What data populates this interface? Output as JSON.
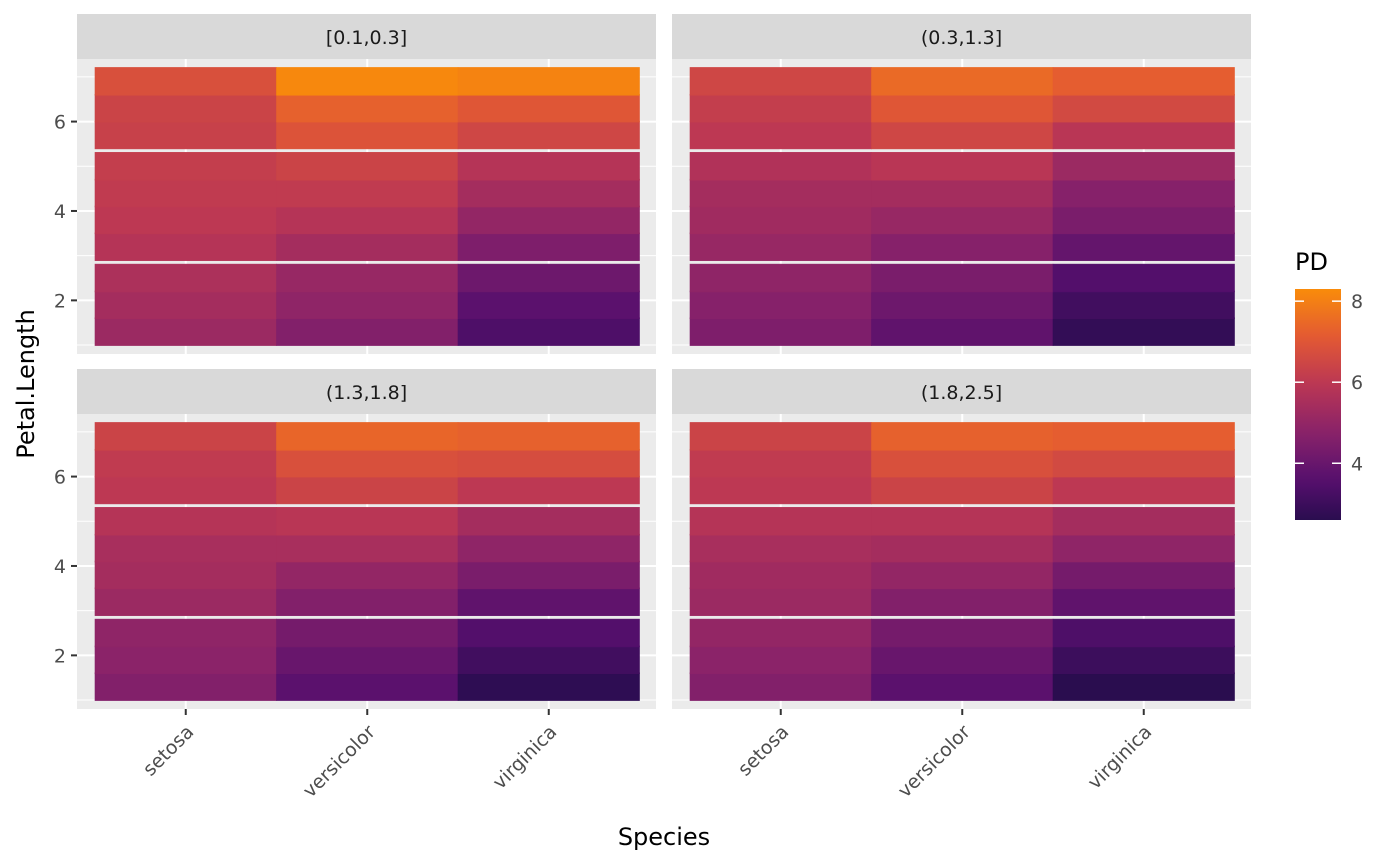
{
  "chart_data": {
    "type": "heatmap",
    "xlabel": "Species",
    "ylabel": "Petal.Length",
    "categories": [
      "setosa",
      "versicolor",
      "virginica"
    ],
    "y_ticks": [
      2,
      4,
      6
    ],
    "y_bins_centers": [
      1.3,
      1.9,
      2.5,
      3.2,
      3.8,
      4.4,
      5.0,
      5.7,
      6.3,
      6.9
    ],
    "ylim": [
      0.8,
      7.4
    ],
    "facets": [
      {
        "label": "[0.1,0.3]",
        "values": [
          [
            5.2,
            4.6,
            3.4
          ],
          [
            5.4,
            4.9,
            3.7
          ],
          [
            5.6,
            5.1,
            4.1
          ],
          [
            5.8,
            5.4,
            4.5
          ],
          [
            6.0,
            5.8,
            5.0
          ],
          [
            6.1,
            6.1,
            5.4
          ],
          [
            6.2,
            6.4,
            5.8
          ],
          [
            6.3,
            6.9,
            6.5
          ],
          [
            6.4,
            7.3,
            7.0
          ],
          [
            6.8,
            8.2,
            8.1
          ]
        ]
      },
      {
        "label": "(0.3,1.3]",
        "values": [
          [
            4.5,
            3.8,
            2.8
          ],
          [
            4.7,
            4.1,
            3.1
          ],
          [
            4.9,
            4.4,
            3.5
          ],
          [
            5.1,
            4.7,
            3.9
          ],
          [
            5.3,
            5.1,
            4.4
          ],
          [
            5.4,
            5.4,
            4.7
          ],
          [
            5.7,
            5.9,
            5.2
          ],
          [
            6.0,
            6.5,
            5.9
          ],
          [
            6.2,
            7.0,
            6.6
          ],
          [
            6.5,
            7.5,
            7.2
          ]
        ]
      },
      {
        "label": "(1.3,1.8]",
        "values": [
          [
            4.6,
            3.7,
            2.7
          ],
          [
            4.8,
            4.0,
            3.1
          ],
          [
            4.9,
            4.3,
            3.5
          ],
          [
            5.2,
            4.6,
            3.8
          ],
          [
            5.4,
            5.0,
            4.4
          ],
          [
            5.5,
            5.5,
            4.9
          ],
          [
            5.8,
            5.9,
            5.4
          ],
          [
            6.0,
            6.4,
            6.0
          ],
          [
            6.1,
            6.8,
            6.7
          ],
          [
            6.4,
            7.4,
            7.3
          ]
        ]
      },
      {
        "label": "(1.8,2.5]",
        "values": [
          [
            4.6,
            3.7,
            2.6
          ],
          [
            4.8,
            4.0,
            3.0
          ],
          [
            5.0,
            4.3,
            3.4
          ],
          [
            5.2,
            4.6,
            3.8
          ],
          [
            5.3,
            5.0,
            4.3
          ],
          [
            5.5,
            5.4,
            4.9
          ],
          [
            5.8,
            5.8,
            5.4
          ],
          [
            6.0,
            6.4,
            6.0
          ],
          [
            6.1,
            6.8,
            6.6
          ],
          [
            6.4,
            7.3,
            7.2
          ]
        ]
      }
    ],
    "legend": {
      "title": "PD",
      "ticks": [
        4,
        6,
        8
      ],
      "range": [
        2.6,
        8.3
      ],
      "palette": "inferno",
      "placement": "right"
    },
    "colors": {
      "panel_background": "#ebebeb",
      "strip_background": "#d9d9d9",
      "grid_major": "#ffffff"
    }
  }
}
